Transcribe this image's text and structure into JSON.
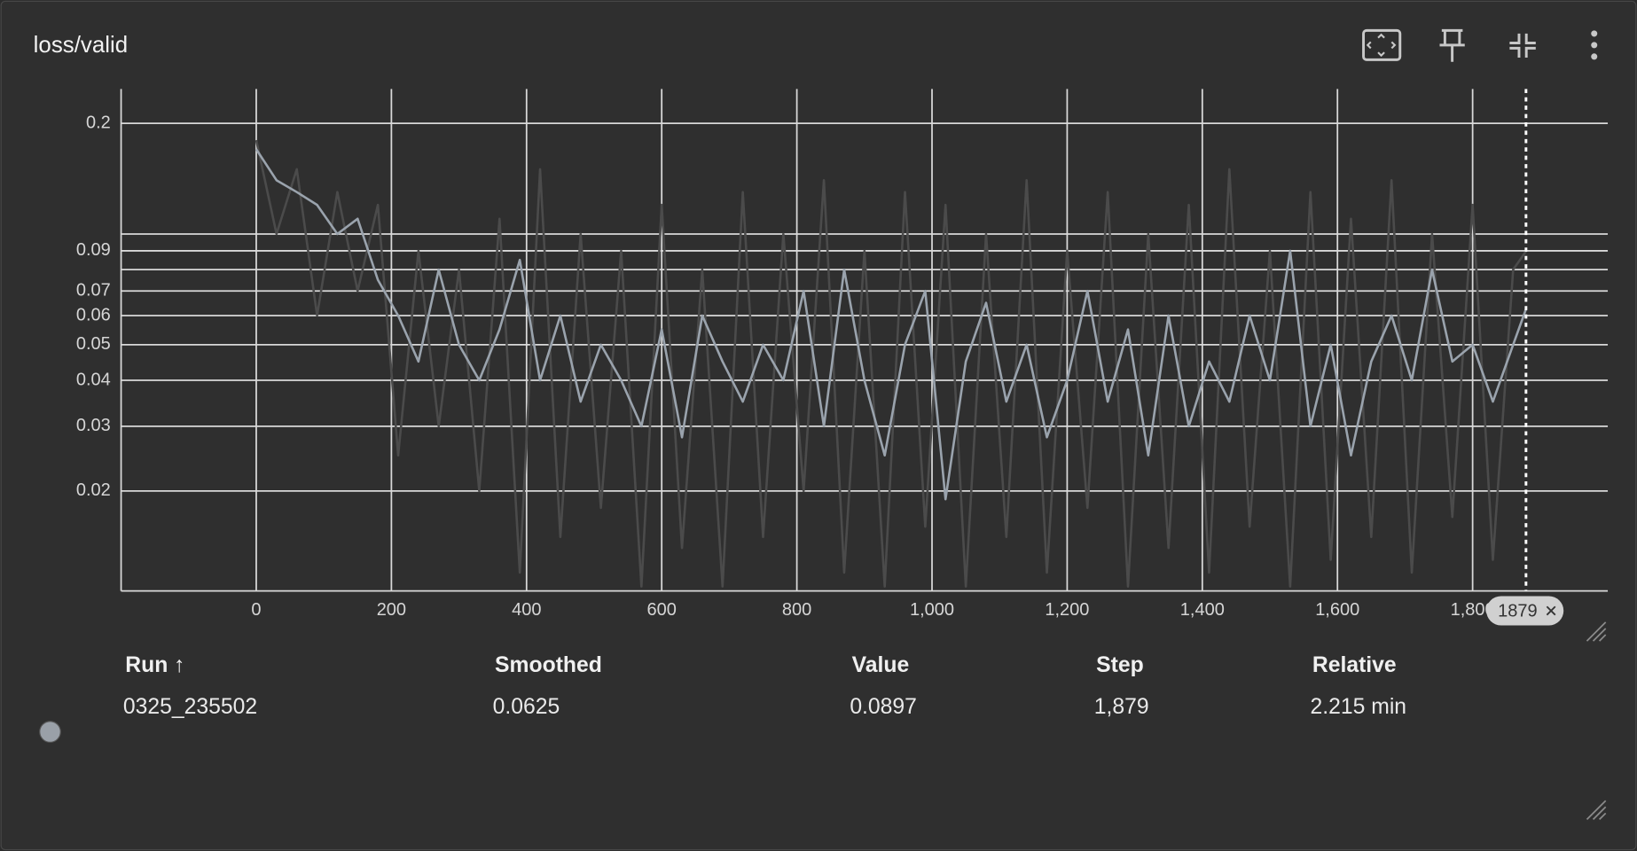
{
  "card": {
    "title": "loss/valid"
  },
  "chart_data": {
    "type": "line",
    "log_y": true,
    "grid": true,
    "xlim": [
      -200,
      2000
    ],
    "ylim": [
      0.0107,
      0.248
    ],
    "xticks": [
      0,
      200,
      400,
      600,
      800,
      {
        "value": 1000,
        "label": "1,000"
      },
      {
        "value": 1200,
        "label": "1,200"
      },
      {
        "value": 1400,
        "label": "1,400"
      },
      {
        "value": 1600,
        "label": "1,600"
      },
      {
        "value": 1800,
        "label": "1,800"
      }
    ],
    "yticks": [
      0.02,
      0.03,
      0.04,
      0.05,
      0.06,
      0.07,
      {
        "value": 0.08,
        "label": null
      },
      0.09,
      {
        "value": 0.1,
        "label": null
      },
      0.2
    ],
    "x": [
      0,
      30,
      60,
      90,
      120,
      150,
      180,
      210,
      240,
      270,
      300,
      330,
      360,
      390,
      420,
      450,
      480,
      510,
      540,
      570,
      600,
      630,
      660,
      690,
      720,
      750,
      780,
      810,
      840,
      870,
      900,
      930,
      960,
      990,
      1020,
      1050,
      1080,
      1110,
      1140,
      1170,
      1200,
      1230,
      1260,
      1290,
      1320,
      1350,
      1380,
      1410,
      1440,
      1470,
      1500,
      1530,
      1560,
      1590,
      1620,
      1650,
      1680,
      1710,
      1740,
      1770,
      1800,
      1830,
      1860,
      1879
    ],
    "series": [
      {
        "color": "#4b4b4b",
        "values": [
          0.18,
          0.1,
          0.15,
          0.06,
          0.13,
          0.07,
          0.12,
          0.025,
          0.09,
          0.03,
          0.08,
          0.02,
          0.11,
          0.012,
          0.15,
          0.015,
          0.1,
          0.018,
          0.09,
          0.011,
          0.12,
          0.014,
          0.08,
          0.011,
          0.13,
          0.015,
          0.1,
          0.02,
          0.14,
          0.012,
          0.09,
          0.011,
          0.13,
          0.016,
          0.12,
          0.011,
          0.1,
          0.015,
          0.14,
          0.012,
          0.09,
          0.018,
          0.13,
          0.011,
          0.1,
          0.014,
          0.12,
          0.012,
          0.15,
          0.016,
          0.09,
          0.011,
          0.13,
          0.013,
          0.11,
          0.015,
          0.14,
          0.012,
          0.1,
          0.017,
          0.12,
          0.013,
          0.08,
          0.0897
        ]
      },
      {
        "color": "#9aa3ad",
        "values": [
          0.17,
          0.14,
          0.13,
          0.12,
          0.1,
          0.11,
          0.075,
          0.06,
          0.045,
          0.08,
          0.05,
          0.04,
          0.055,
          0.085,
          0.04,
          0.06,
          0.035,
          0.05,
          0.04,
          0.03,
          0.055,
          0.028,
          0.06,
          0.045,
          0.035,
          0.05,
          0.04,
          0.07,
          0.03,
          0.08,
          0.04,
          0.025,
          0.05,
          0.07,
          0.019,
          0.045,
          0.065,
          0.035,
          0.05,
          0.028,
          0.04,
          0.07,
          0.035,
          0.055,
          0.025,
          0.06,
          0.03,
          0.045,
          0.035,
          0.06,
          0.04,
          0.09,
          0.03,
          0.05,
          0.025,
          0.045,
          0.06,
          0.04,
          0.08,
          0.045,
          0.05,
          0.035,
          0.05,
          0.0625
        ]
      }
    ],
    "hover_step": 1879
  },
  "table": {
    "headers": [
      "Run ↑",
      "Smoothed",
      "Value",
      "Step",
      "Relative"
    ],
    "rows": [
      {
        "color": "#9aa0a8",
        "cells": [
          "0325_235502",
          "0.0625",
          "0.0897",
          "1,879",
          "2.215 min"
        ]
      }
    ]
  }
}
